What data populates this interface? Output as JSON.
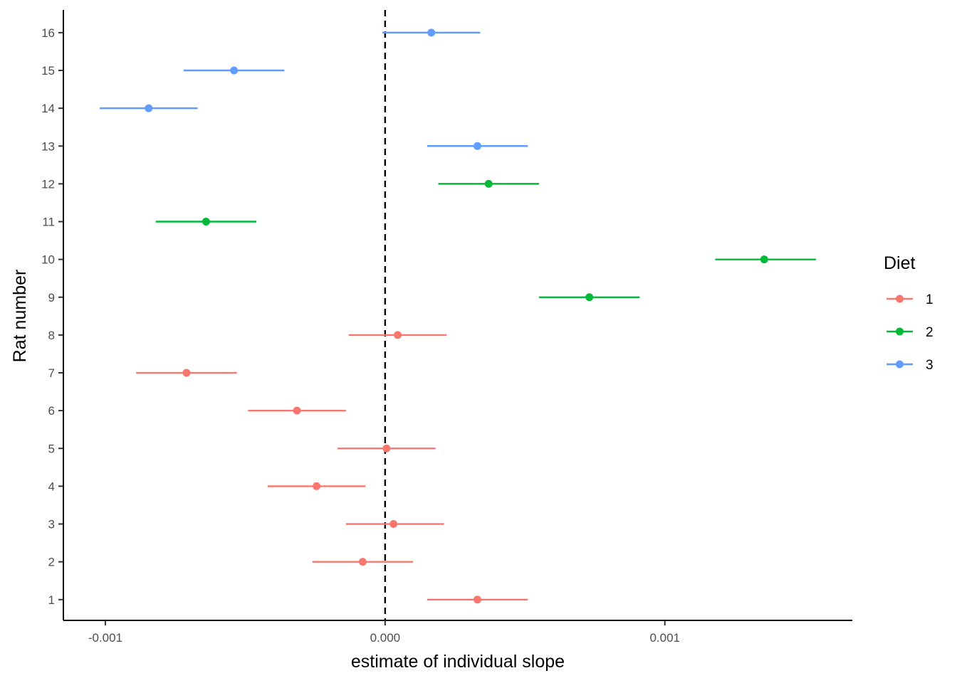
{
  "chart_data": {
    "type": "scatter",
    "subtype": "forest-plot-with-horizontal-error-bars",
    "title": "",
    "xlabel": "estimate of individual slope",
    "ylabel": "Rat number",
    "xlim": [
      -0.00115,
      0.00167
    ],
    "ylim": [
      0.45,
      16.6
    ],
    "x_ticks": [
      -0.001,
      0.0,
      0.001
    ],
    "x_tick_labels": [
      "-0.001",
      "0.000",
      "0.001"
    ],
    "y_ticks": [
      1,
      2,
      3,
      4,
      5,
      6,
      7,
      8,
      9,
      10,
      11,
      12,
      13,
      14,
      15,
      16
    ],
    "y_tick_labels": [
      "1",
      "2",
      "3",
      "4",
      "5",
      "6",
      "7",
      "8",
      "9",
      "10",
      "11",
      "12",
      "13",
      "14",
      "15",
      "16"
    ],
    "reference_line": {
      "x": 0.0,
      "style": "dashed",
      "color": "#000000"
    },
    "grid": false,
    "legend": {
      "title": "Diet",
      "position": "right",
      "entries": [
        {
          "label": "1",
          "color": "#F8766D"
        },
        {
          "label": "2",
          "color": "#00BA38"
        },
        {
          "label": "3",
          "color": "#619CFF"
        }
      ]
    },
    "points": [
      {
        "rat": 1,
        "diet": "1",
        "estimate": 0.00033,
        "low": 0.00015,
        "high": 0.00051
      },
      {
        "rat": 2,
        "diet": "1",
        "estimate": -8e-05,
        "low": -0.00026,
        "high": 0.0001
      },
      {
        "rat": 3,
        "diet": "1",
        "estimate": 3e-05,
        "low": -0.00014,
        "high": 0.00021
      },
      {
        "rat": 4,
        "diet": "1",
        "estimate": -0.000245,
        "low": -0.00042,
        "high": -7e-05
      },
      {
        "rat": 5,
        "diet": "1",
        "estimate": 5e-06,
        "low": -0.00017,
        "high": 0.00018
      },
      {
        "rat": 6,
        "diet": "1",
        "estimate": -0.000315,
        "low": -0.00049,
        "high": -0.00014
      },
      {
        "rat": 7,
        "diet": "1",
        "estimate": -0.00071,
        "low": -0.00089,
        "high": -0.00053
      },
      {
        "rat": 8,
        "diet": "1",
        "estimate": 4.5e-05,
        "low": -0.00013,
        "high": 0.00022
      },
      {
        "rat": 9,
        "diet": "2",
        "estimate": 0.00073,
        "low": 0.00055,
        "high": 0.00091
      },
      {
        "rat": 10,
        "diet": "2",
        "estimate": 0.001355,
        "low": 0.00118,
        "high": 0.00154
      },
      {
        "rat": 11,
        "diet": "2",
        "estimate": -0.00064,
        "low": -0.00082,
        "high": -0.00046
      },
      {
        "rat": 12,
        "diet": "2",
        "estimate": 0.00037,
        "low": 0.00019,
        "high": 0.00055
      },
      {
        "rat": 13,
        "diet": "3",
        "estimate": 0.00033,
        "low": 0.00015,
        "high": 0.00051
      },
      {
        "rat": 14,
        "diet": "3",
        "estimate": -0.000845,
        "low": -0.00102,
        "high": -0.00067
      },
      {
        "rat": 15,
        "diet": "3",
        "estimate": -0.00054,
        "low": -0.00072,
        "high": -0.00036
      },
      {
        "rat": 16,
        "diet": "3",
        "estimate": 0.000165,
        "low": -1e-05,
        "high": 0.00034
      }
    ]
  }
}
